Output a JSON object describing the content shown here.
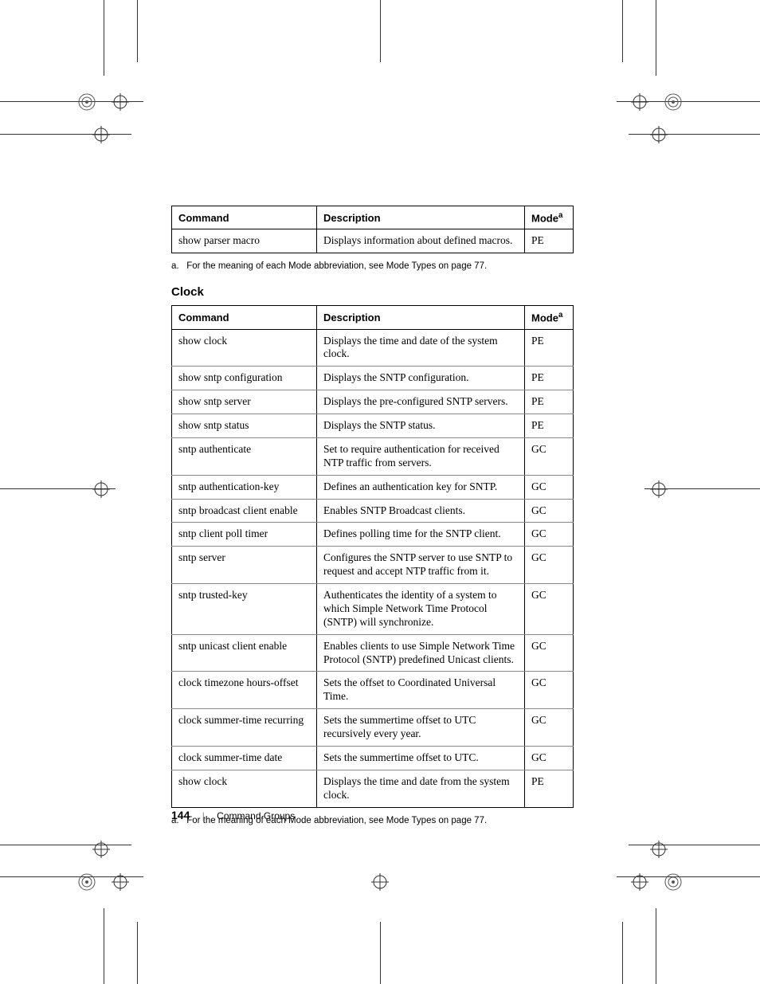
{
  "table1": {
    "headers": {
      "cmd": "Command",
      "desc": "Description",
      "mode": "Mode",
      "mode_sup": "a"
    },
    "rows": [
      {
        "cmd": "show parser macro",
        "desc": "Displays information about defined macros.",
        "mode": "PE"
      }
    ]
  },
  "footnote1": {
    "marker": "a.",
    "text": "For the meaning of each Mode abbreviation, see Mode Types on page 77."
  },
  "section_heading": "Clock",
  "table2": {
    "headers": {
      "cmd": "Command",
      "desc": "Description",
      "mode": "Mode",
      "mode_sup": "a"
    },
    "rows": [
      {
        "cmd": "show clock",
        "desc": "Displays the time and date of the system clock.",
        "mode": "PE"
      },
      {
        "cmd": "show sntp configuration",
        "desc": "Displays the SNTP configuration.",
        "mode": "PE"
      },
      {
        "cmd": "show sntp server",
        "desc": "Displays the pre-configured SNTP servers.",
        "mode": "PE"
      },
      {
        "cmd": "show sntp status",
        "desc": "Displays the SNTP status.",
        "mode": "PE"
      },
      {
        "cmd": "sntp authenticate",
        "desc": "Set to require authentication for received NTP traffic from servers.",
        "mode": "GC"
      },
      {
        "cmd": "sntp authentication-key",
        "desc": "Defines an authentication key for SNTP.",
        "mode": "GC"
      },
      {
        "cmd": "sntp broadcast client enable",
        "desc": "Enables SNTP Broadcast clients.",
        "mode": "GC"
      },
      {
        "cmd": "sntp client poll timer",
        "desc": "Defines polling time for the SNTP client.",
        "mode": "GC"
      },
      {
        "cmd": "sntp server",
        "desc": "Configures the SNTP server to use SNTP to request and accept NTP traffic from it.",
        "mode": "GC"
      },
      {
        "cmd": "sntp trusted-key",
        "desc": "Authenticates the identity of a system to which Simple Network Time Protocol (SNTP) will synchronize.",
        "mode": "GC"
      },
      {
        "cmd": "sntp unicast client enable",
        "desc": "Enables clients to use Simple Network Time Protocol (SNTP) predefined Unicast clients.",
        "mode": "GC"
      },
      {
        "cmd": "clock timezone hours-offset",
        "desc": "Sets the offset to Coordinated Universal Time.",
        "mode": "GC"
      },
      {
        "cmd": "clock summer-time recurring",
        "desc": "Sets the summertime offset to UTC recursively every year.",
        "mode": "GC"
      },
      {
        "cmd": "clock summer-time date",
        "desc": "Sets the summertime offset to UTC.",
        "mode": "GC"
      },
      {
        "cmd": "show clock",
        "desc": "Displays the time and date from the system clock.",
        "mode": "PE"
      }
    ]
  },
  "footnote2": {
    "marker": "a.",
    "text": "For the meaning of each Mode abbreviation, see Mode Types on page 77."
  },
  "footer": {
    "page_number": "144",
    "section": "Command Groups"
  },
  "style": {
    "page_bg": "#ffffff",
    "text_color": "#000000",
    "grid_color": "#888888",
    "sans_font": "Arial, Helvetica, sans-serif",
    "serif_font": "Georgia, 'Times New Roman', serif"
  }
}
